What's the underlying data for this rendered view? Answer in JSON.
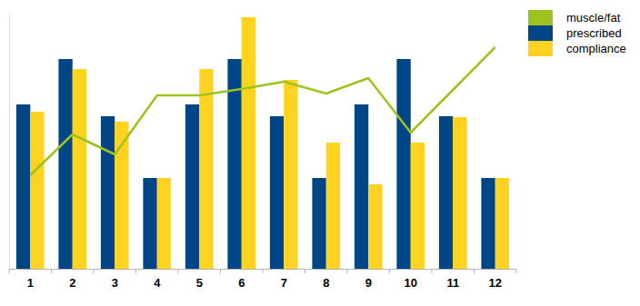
{
  "chart_data": {
    "type": "bar",
    "categories": [
      "1",
      "2",
      "3",
      "4",
      "5",
      "6",
      "7",
      "8",
      "9",
      "10",
      "11",
      "12"
    ],
    "series": [
      {
        "name": "muscle/fat",
        "type": "line",
        "color": "#9dc41e",
        "values": [
          103,
          148,
          126,
          191,
          191,
          198,
          206,
          193,
          210,
          150,
          197,
          244
        ]
      },
      {
        "name": "prescribed",
        "type": "bar",
        "color": "#004586",
        "values": [
          181,
          231,
          168,
          100,
          181,
          231,
          168,
          100,
          181,
          231,
          168,
          100
        ]
      },
      {
        "name": "compliance",
        "type": "bar",
        "color": "#ffd320",
        "values": [
          173,
          220,
          162,
          100,
          220,
          277,
          208,
          139,
          93,
          139,
          167,
          100
        ]
      }
    ],
    "ylim": [
      0,
      280
    ],
    "tick_labels": "x",
    "grid": false,
    "legend": "top-right"
  }
}
